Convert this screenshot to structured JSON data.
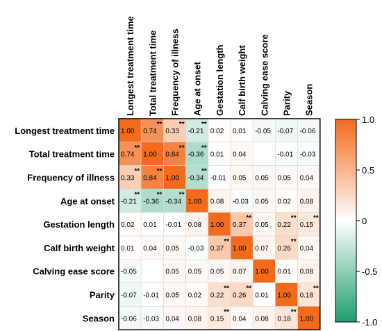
{
  "chart_data": {
    "type": "heatmap",
    "rows": [
      "Longest treatment time",
      "Total treatment time",
      "Frequency of illness",
      "Age at onset",
      "Gestation length",
      "Calf birth weight",
      "Calving ease score",
      "Parity",
      "Season"
    ],
    "columns": [
      "Longest treatment time",
      "Total treatment time",
      "Frequency of illness",
      "Age at onset",
      "Gestation length",
      "Calf birth weight",
      "Calving ease score",
      "Parity",
      "Season"
    ],
    "values": [
      [
        1.0,
        0.74,
        0.33,
        -0.21,
        0.02,
        0.01,
        -0.05,
        -0.07,
        -0.06
      ],
      [
        0.74,
        1.0,
        0.84,
        -0.36,
        0.01,
        0.04,
        null,
        -0.01,
        -0.03
      ],
      [
        0.33,
        0.84,
        1.0,
        -0.34,
        -0.01,
        0.05,
        0.05,
        0.05,
        0.04
      ],
      [
        -0.21,
        -0.36,
        -0.34,
        1.0,
        0.08,
        -0.03,
        0.05,
        0.02,
        0.08
      ],
      [
        0.02,
        0.01,
        -0.01,
        0.08,
        1.0,
        0.37,
        0.05,
        0.22,
        0.15
      ],
      [
        0.01,
        0.04,
        0.05,
        -0.03,
        0.37,
        1.0,
        0.07,
        0.26,
        0.04
      ],
      [
        -0.05,
        null,
        0.05,
        0.05,
        0.05,
        0.07,
        1.0,
        0.01,
        0.08
      ],
      [
        -0.07,
        -0.01,
        0.05,
        0.02,
        0.22,
        0.26,
        0.01,
        1.0,
        0.18
      ],
      [
        -0.06,
        -0.03,
        0.04,
        0.08,
        0.15,
        0.04,
        0.08,
        0.18,
        1.0
      ]
    ],
    "labels": [
      [
        "1.00",
        "0.74",
        "0.33",
        "-0.21",
        "0.02",
        "0.01",
        "-0.05",
        "-0.07",
        "-0.06"
      ],
      [
        "0.74",
        "1.00",
        "0.84",
        "-0.36",
        "0.01",
        "0.04",
        "",
        "-0.01",
        "-0.03"
      ],
      [
        "0.33",
        "0.84",
        "1.00",
        "-0.34",
        "-0.01",
        "0.05",
        "0.05",
        "0.05",
        "0.04"
      ],
      [
        "-0.21",
        "-0.36",
        "-0.34",
        "1.00",
        "0.08",
        "-0.03",
        "0.05",
        "0.02",
        "0.08"
      ],
      [
        "0.02",
        "0.01",
        "-0.01",
        "0.08",
        "1.00",
        "0.37",
        "0.05",
        "0.22",
        "0.15"
      ],
      [
        "0.01",
        "0.04",
        "0.05",
        "-0.03",
        "0.37",
        "1.00",
        "0.07",
        "0.26",
        "0.04"
      ],
      [
        "-0.05",
        "",
        "0.05",
        "0.05",
        "0.05",
        "0.07",
        "1.00",
        "0.01",
        "0.08"
      ],
      [
        "-0.07",
        "-0.01",
        "0.05",
        "0.02",
        "0.22",
        "0.26",
        "0.01",
        "1.00",
        "0.18"
      ],
      [
        "-0.06",
        "-0.03",
        "0.04",
        "0.08",
        "0.15",
        "0.04",
        "0.08",
        "0.18",
        "1.00"
      ]
    ],
    "significance_marker": "**",
    "significant_pairs": [
      [
        0,
        1
      ],
      [
        0,
        2
      ],
      [
        0,
        3
      ],
      [
        1,
        2
      ],
      [
        1,
        3
      ],
      [
        2,
        3
      ],
      [
        4,
        5
      ],
      [
        4,
        7
      ],
      [
        4,
        8
      ],
      [
        5,
        7
      ],
      [
        7,
        8
      ]
    ],
    "colorbar": {
      "ticks": [
        "1.0",
        "0.5",
        "0",
        "-0.5",
        "-1.0"
      ],
      "tick_values": [
        1.0,
        0.5,
        0,
        -0.5,
        -1.0
      ],
      "range": [
        -1.0,
        1.0
      ],
      "positive_color": "#f26b1d",
      "neutral_color": "#ffffff",
      "negative_color": "#1e9e6b"
    }
  }
}
